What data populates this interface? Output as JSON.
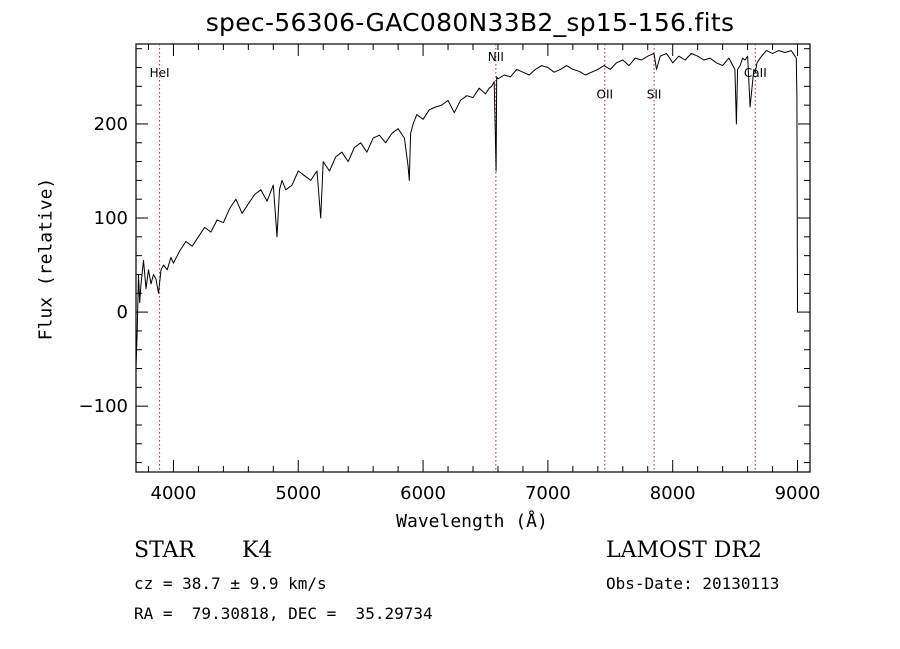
{
  "chart_data": {
    "type": "line",
    "title": "spec-56306-GAC080N33B2_sp15-156.fits",
    "xlabel": "Wavelength (Å)",
    "ylabel": "Flux (relative)",
    "xlim": [
      3700,
      9100
    ],
    "ylim": [
      -170,
      285
    ],
    "xticks": [
      4000,
      5000,
      6000,
      7000,
      8000,
      9000
    ],
    "xtick_labels": [
      "4000",
      "5000",
      "6000",
      "7000",
      "8000",
      "9000"
    ],
    "yticks": [
      -100,
      0,
      100,
      200
    ],
    "ytick_labels": [
      "−100",
      "0",
      "100",
      "200"
    ],
    "grid": false,
    "lines": [
      {
        "label": "HeI",
        "x": 3889,
        "label_y": 250
      },
      {
        "label": "NII",
        "x": 6583,
        "label_y": 267
      },
      {
        "label": "OII",
        "x": 7456,
        "label_y": 227
      },
      {
        "label": "SII",
        "x": 7851,
        "label_y": 227
      },
      {
        "label": "CaII",
        "x": 8662,
        "label_y": 250
      }
    ],
    "series": [
      {
        "x": [
          3700,
          3710,
          3720,
          3730,
          3740,
          3760,
          3780,
          3800,
          3820,
          3840,
          3860,
          3880,
          3900,
          3920,
          3950,
          3980,
          4000,
          4050,
          4100,
          4150,
          4200,
          4250,
          4300,
          4350,
          4400,
          4450,
          4500,
          4550,
          4600,
          4650,
          4700,
          4750,
          4800,
          4830,
          4850,
          4870,
          4900,
          4950,
          5000,
          5050,
          5100,
          5150,
          5180,
          5200,
          5250,
          5300,
          5350,
          5400,
          5450,
          5500,
          5550,
          5600,
          5650,
          5700,
          5750,
          5800,
          5850,
          5880,
          5890,
          5900,
          5920,
          5950,
          6000,
          6050,
          6100,
          6150,
          6200,
          6250,
          6300,
          6350,
          6400,
          6450,
          6500,
          6530,
          6550,
          6570,
          6580,
          6585,
          6590,
          6600,
          6650,
          6700,
          6750,
          6800,
          6850,
          6900,
          6950,
          7000,
          7050,
          7100,
          7150,
          7200,
          7250,
          7300,
          7350,
          7400,
          7450,
          7500,
          7550,
          7600,
          7650,
          7700,
          7750,
          7800,
          7850,
          7870,
          7900,
          7950,
          8000,
          8050,
          8100,
          8150,
          8200,
          8250,
          8300,
          8350,
          8400,
          8450,
          8498,
          8510,
          8520,
          8540,
          8560,
          8580,
          8600,
          8620,
          8650,
          8662,
          8675,
          8700,
          8750,
          8800,
          8850,
          8900,
          8950,
          8980,
          8990,
          8995,
          9000,
          9005
        ],
        "y": [
          -60,
          -20,
          40,
          10,
          30,
          55,
          25,
          45,
          30,
          40,
          35,
          20,
          45,
          50,
          45,
          58,
          52,
          65,
          75,
          70,
          80,
          90,
          85,
          98,
          95,
          110,
          120,
          105,
          115,
          125,
          130,
          118,
          135,
          80,
          130,
          140,
          130,
          135,
          150,
          145,
          140,
          150,
          100,
          160,
          150,
          165,
          170,
          160,
          175,
          180,
          170,
          185,
          188,
          180,
          190,
          195,
          185,
          155,
          140,
          190,
          200,
          210,
          205,
          215,
          218,
          220,
          225,
          212,
          225,
          230,
          228,
          238,
          232,
          238,
          240,
          245,
          180,
          150,
          250,
          248,
          252,
          250,
          258,
          255,
          252,
          258,
          262,
          260,
          255,
          258,
          262,
          258,
          256,
          252,
          255,
          258,
          262,
          258,
          265,
          268,
          262,
          270,
          268,
          272,
          275,
          258,
          272,
          275,
          265,
          272,
          268,
          275,
          272,
          268,
          270,
          265,
          262,
          270,
          258,
          200,
          258,
          262,
          270,
          268,
          272,
          218,
          258,
          255,
          265,
          270,
          278,
          275,
          278,
          276,
          278,
          272,
          270,
          230,
          0,
          0
        ]
      }
    ]
  },
  "footer": {
    "object_class": "STAR",
    "subclass": "K4",
    "survey": "LAMOST DR2",
    "cz": "cz = 38.7 ± 9.9 km/s",
    "obs_date": "Obs-Date: 20130113",
    "coords": "RA =  79.30818, DEC =  35.29734"
  }
}
